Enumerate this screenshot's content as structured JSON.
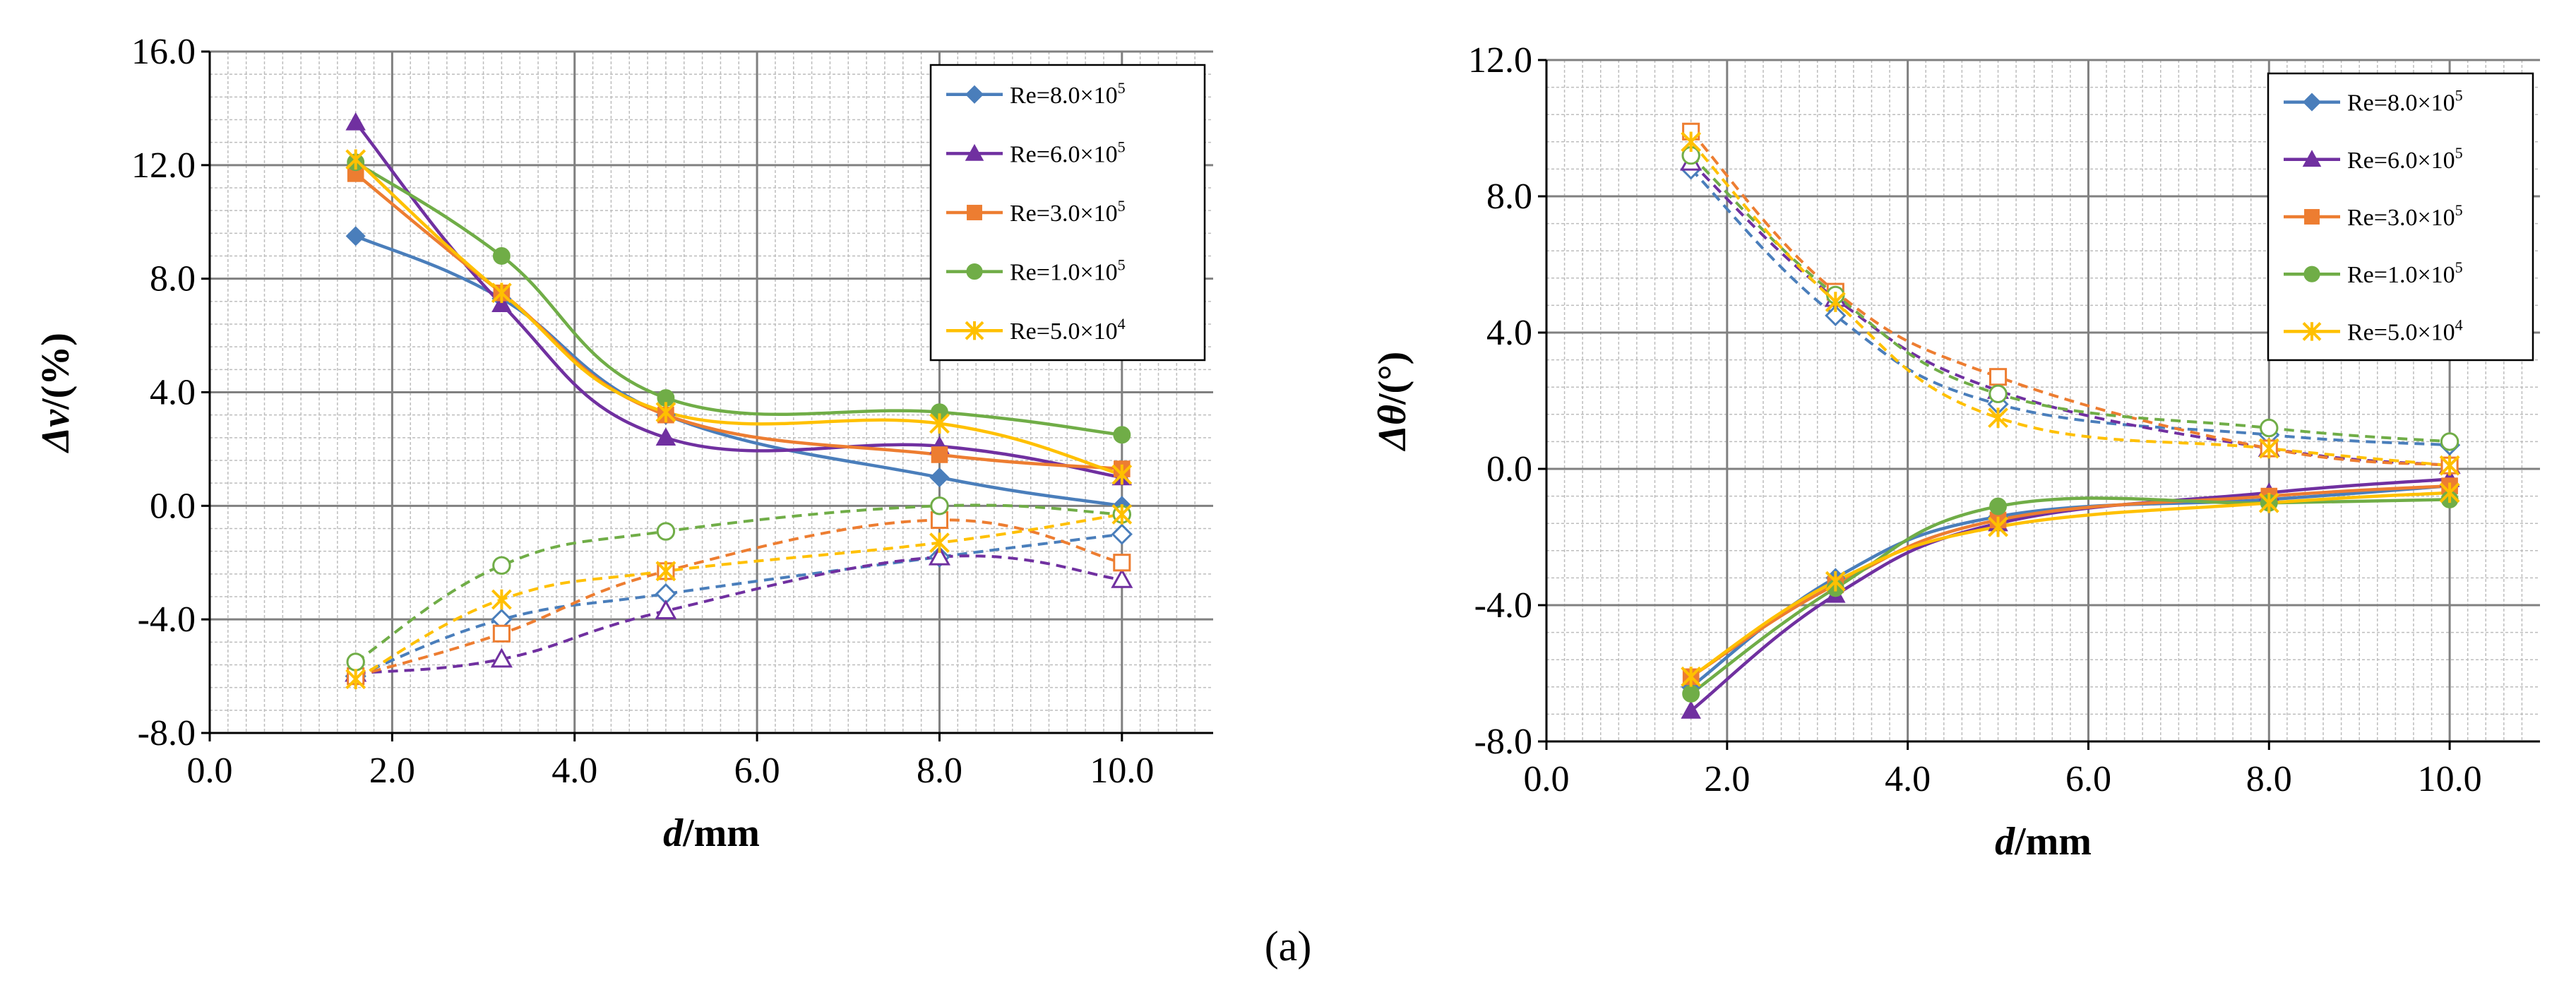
{
  "figure": {
    "panel_label": "(a)"
  },
  "legend": {
    "entries": [
      {
        "prefix": "Re=8.0×10",
        "exp": "5",
        "color": "#4a7ebb",
        "marker": "diamond"
      },
      {
        "prefix": "Re=6.0×10",
        "exp": "5",
        "color": "#7030a0",
        "marker": "triangle"
      },
      {
        "prefix": "Re=3.0×10",
        "exp": "5",
        "color": "#ed7d31",
        "marker": "square"
      },
      {
        "prefix": "Re=1.0×10",
        "exp": "5",
        "color": "#70ad47",
        "marker": "circle"
      },
      {
        "prefix": "Re=5.0×10",
        "exp": "4",
        "color": "#ffc000",
        "marker": "star"
      }
    ]
  },
  "chart_data": [
    {
      "type": "line",
      "ylabel_symbol": "Δv",
      "ylabel_unit": "/(%)",
      "xlabel_symbol": "d",
      "xlabel_unit": "/mm",
      "xlim": [
        0,
        11
      ],
      "ylim": [
        -8,
        16
      ],
      "xticks": [
        0,
        2,
        4,
        6,
        8,
        10
      ],
      "xtick_labels": [
        "0.0",
        "2.0",
        "4.0",
        "6.0",
        "8.0",
        "10.0"
      ],
      "yticks": [
        -8,
        -4,
        0,
        4,
        8,
        12,
        16
      ],
      "ytick_labels": [
        "-8.0",
        "-4.0",
        "0.0",
        "4.0",
        "8.0",
        "12.0",
        "16.0"
      ],
      "x": [
        1.6,
        3.2,
        5.0,
        8.0,
        10.0
      ],
      "series": [
        {
          "name": "Re=8.0×10^5",
          "style": "solid",
          "filled": true,
          "values": [
            9.5,
            7.3,
            3.2,
            1.0,
            0.0
          ]
        },
        {
          "name": "Re=6.0×10^5",
          "style": "solid",
          "filled": true,
          "values": [
            13.5,
            7.1,
            2.4,
            2.1,
            1.0
          ]
        },
        {
          "name": "Re=3.0×10^5",
          "style": "solid",
          "filled": true,
          "values": [
            11.7,
            7.5,
            3.2,
            1.8,
            1.3
          ]
        },
        {
          "name": "Re=1.0×10^5",
          "style": "solid",
          "filled": true,
          "values": [
            12.1,
            8.8,
            3.8,
            3.3,
            2.5
          ]
        },
        {
          "name": "Re=5.0×10^4",
          "style": "solid",
          "filled": true,
          "values": [
            12.2,
            7.5,
            3.3,
            2.9,
            1.1
          ]
        },
        {
          "name": "Re=8.0×10^5",
          "style": "dashed",
          "filled": false,
          "values": [
            -6.0,
            -4.0,
            -3.1,
            -1.8,
            -1.0
          ]
        },
        {
          "name": "Re=6.0×10^5",
          "style": "dashed",
          "filled": false,
          "values": [
            -5.9,
            -5.4,
            -3.7,
            -1.8,
            -2.6
          ]
        },
        {
          "name": "Re=3.0×10^5",
          "style": "dashed",
          "filled": false,
          "values": [
            -6.0,
            -4.5,
            -2.3,
            -0.5,
            -2.0
          ]
        },
        {
          "name": "Re=1.0×10^5",
          "style": "dashed",
          "filled": false,
          "values": [
            -5.5,
            -2.1,
            -0.9,
            0.0,
            -0.3
          ]
        },
        {
          "name": "Re=5.0×10^4",
          "style": "dashed",
          "filled": false,
          "values": [
            -6.1,
            -3.3,
            -2.3,
            -1.3,
            -0.3
          ]
        }
      ]
    },
    {
      "type": "line",
      "ylabel_symbol": "Δθ",
      "ylabel_unit": "/(°)",
      "xlabel_symbol": "d",
      "xlabel_unit": "/mm",
      "xlim": [
        0,
        11
      ],
      "ylim": [
        -8,
        12
      ],
      "xticks": [
        0,
        2,
        4,
        6,
        8,
        10
      ],
      "xtick_labels": [
        "0.0",
        "2.0",
        "4.0",
        "6.0",
        "8.0",
        "10.0"
      ],
      "yticks": [
        -8,
        -4,
        0,
        4,
        8,
        12
      ],
      "ytick_labels": [
        "-8.0",
        "-4.0",
        "0.0",
        "4.0",
        "8.0",
        "12.0"
      ],
      "x": [
        1.6,
        3.2,
        5.0,
        8.0,
        10.0
      ],
      "series": [
        {
          "name": "Re=8.0×10^5",
          "style": "solid",
          "filled": true,
          "values": [
            -6.4,
            -3.2,
            -1.4,
            -0.9,
            -0.5
          ]
        },
        {
          "name": "Re=6.0×10^5",
          "style": "solid",
          "filled": true,
          "values": [
            -7.1,
            -3.7,
            -1.6,
            -0.7,
            -0.3
          ]
        },
        {
          "name": "Re=3.0×10^5",
          "style": "solid",
          "filled": true,
          "values": [
            -6.1,
            -3.4,
            -1.5,
            -0.8,
            -0.5
          ]
        },
        {
          "name": "Re=1.0×10^5",
          "style": "solid",
          "filled": true,
          "values": [
            -6.6,
            -3.5,
            -1.1,
            -1.0,
            -0.9
          ]
        },
        {
          "name": "Re=5.0×10^4",
          "style": "solid",
          "filled": true,
          "values": [
            -6.1,
            -3.3,
            -1.7,
            -1.0,
            -0.7
          ]
        },
        {
          "name": "Re=8.0×10^5",
          "style": "dashed",
          "filled": false,
          "values": [
            8.8,
            4.5,
            1.9,
            1.0,
            0.7
          ]
        },
        {
          "name": "Re=6.0×10^5",
          "style": "dashed",
          "filled": false,
          "values": [
            9.0,
            5.0,
            2.3,
            0.6,
            0.1
          ]
        },
        {
          "name": "Re=3.0×10^5",
          "style": "dashed",
          "filled": false,
          "values": [
            9.9,
            5.2,
            2.7,
            0.6,
            0.1
          ]
        },
        {
          "name": "Re=1.0×10^5",
          "style": "dashed",
          "filled": false,
          "values": [
            9.2,
            5.1,
            2.2,
            1.2,
            0.8
          ]
        },
        {
          "name": "Re=5.0×10^4",
          "style": "dashed",
          "filled": false,
          "values": [
            9.6,
            4.9,
            1.5,
            0.6,
            0.1
          ]
        }
      ]
    }
  ]
}
